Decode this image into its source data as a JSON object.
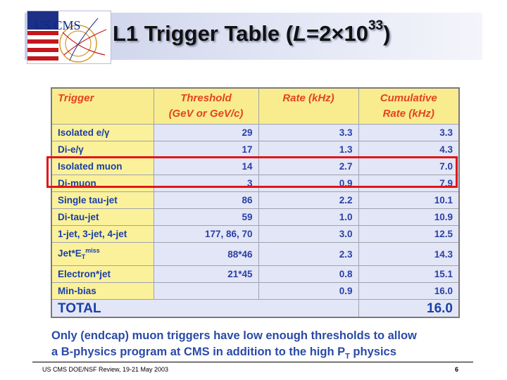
{
  "header": {
    "logo_text": "US CMS",
    "title_prefix": "L1 Trigger Table (",
    "title_var": "L",
    "title_mid": "=2×10",
    "title_exp": "33",
    "title_suffix": ")"
  },
  "table": {
    "columns": [
      "Trigger",
      "Threshold (GeV or GeV/c)",
      "Rate (kHz)",
      "Cumulative Rate (kHz)"
    ],
    "col_threshold_line1": "Threshold",
    "col_threshold_line2": "(GeV or GeV/c)",
    "col_cumulative_line1": "Cumulative",
    "col_cumulative_line2": "Rate (kHz)",
    "rows": [
      {
        "trigger": "Isolated e/γ",
        "threshold": "29",
        "rate": "3.3",
        "cumulative": "3.3"
      },
      {
        "trigger": "Di-e/γ",
        "threshold": "17",
        "rate": "1.3",
        "cumulative": "4.3"
      },
      {
        "trigger": "Isolated muon",
        "threshold": "14",
        "rate": "2.7",
        "cumulative": "7.0"
      },
      {
        "trigger": "Di-muon",
        "threshold": "3",
        "rate": "0.9",
        "cumulative": "7.9"
      },
      {
        "trigger": "Single tau-jet",
        "threshold": "86",
        "rate": "2.2",
        "cumulative": "10.1"
      },
      {
        "trigger": "Di-tau-jet",
        "threshold": "59",
        "rate": "1.0",
        "cumulative": "10.9"
      },
      {
        "trigger": "1-jet, 3-jet, 4-jet",
        "threshold": "177, 86, 70",
        "rate": "3.0",
        "cumulative": "12.5"
      },
      {
        "trigger_base": "Jet*E",
        "trigger_sub": "T",
        "trigger_sup": "miss",
        "threshold": "88*46",
        "rate": "2.3",
        "cumulative": "14.3"
      },
      {
        "trigger": "Electron*jet",
        "threshold": "21*45",
        "rate": "0.8",
        "cumulative": "15.1"
      },
      {
        "trigger": "Min-bias",
        "threshold": "",
        "rate": "0.9",
        "cumulative": "16.0"
      }
    ],
    "total_label": "TOTAL",
    "total_value": "16.0"
  },
  "caption": {
    "line1": "Only (endcap) muon triggers have low enough thresholds to allow",
    "line2_prefix": "a B-physics program at CMS in addition to the high P",
    "line2_sub": "T",
    "line2_suffix": " physics"
  },
  "footer": {
    "left": "US CMS DOE/NSF Review, 19-21 May 2003",
    "page_number": "6"
  },
  "colors": {
    "header_band": "#c9cfe9",
    "table_header_bg": "#f9ec8e",
    "table_header_text": "#e4431f",
    "first_col_bg": "#fbf19a",
    "value_bg": "#e3e6f6",
    "value_text": "#2a3fa5",
    "highlight_box": "#e3141b",
    "caption_text": "#2a4aa7"
  }
}
